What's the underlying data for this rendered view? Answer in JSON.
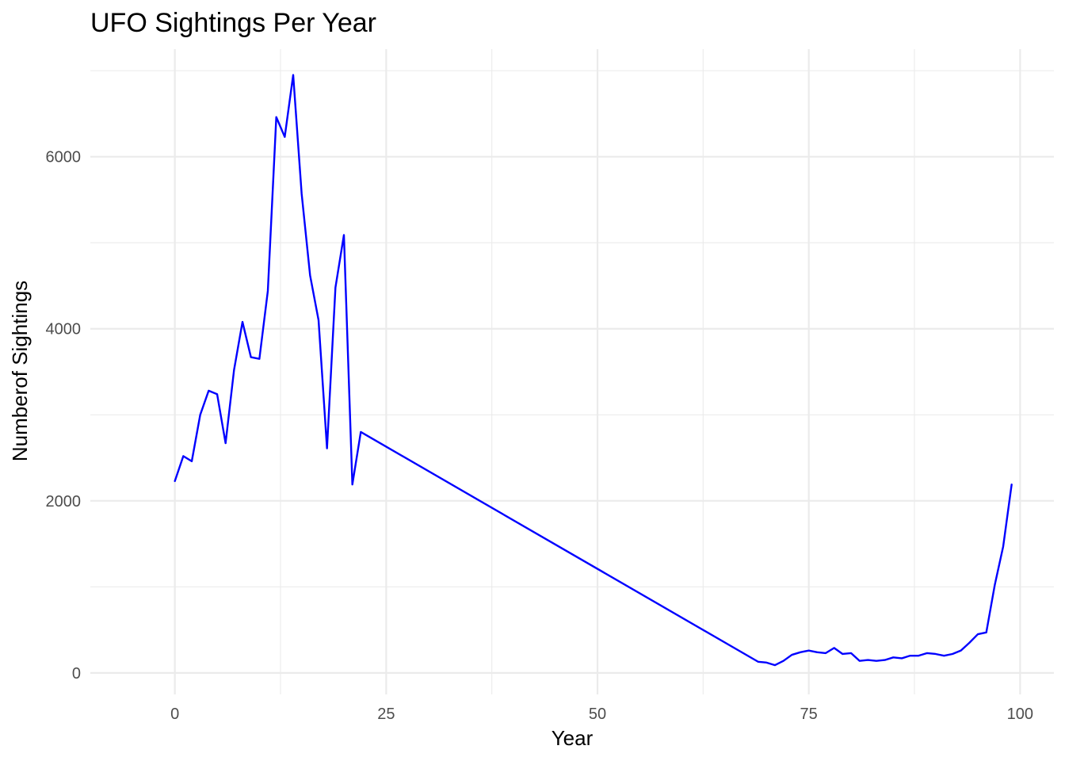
{
  "chart_data": {
    "type": "line",
    "title": "UFO Sightings Per Year",
    "xlabel": "Year",
    "ylabel": "Numberof Sightings",
    "xlim": [
      -10,
      104
    ],
    "ylim": [
      -250,
      7250
    ],
    "x_major_ticks": [
      0,
      25,
      50,
      75,
      100
    ],
    "x_minor_ticks": [
      12.5,
      37.5,
      62.5,
      87.5
    ],
    "y_major_ticks": [
      0,
      2000,
      4000,
      6000
    ],
    "y_minor_ticks": [
      1000,
      3000,
      5000,
      7000
    ],
    "grid": true,
    "legend": "none",
    "series_color": "#0000ff",
    "series": [
      {
        "x": [
          0,
          1,
          2,
          3,
          4,
          5,
          6,
          7,
          8,
          9,
          10,
          11,
          12,
          13,
          14,
          15,
          16,
          17,
          18,
          19,
          20,
          21,
          22,
          69,
          70,
          71,
          72,
          73,
          74,
          75,
          76,
          77,
          78,
          79,
          80,
          81,
          82,
          83,
          84,
          85,
          86,
          87,
          88,
          89,
          90,
          91,
          92,
          93,
          94,
          95,
          96,
          97,
          98,
          99
        ],
        "values": [
          2230,
          2520,
          2460,
          3000,
          3280,
          3240,
          2670,
          3520,
          4080,
          3670,
          3650,
          4440,
          6460,
          6230,
          6950,
          5570,
          4620,
          4100,
          2610,
          4480,
          5090,
          2190,
          2800,
          130,
          120,
          90,
          140,
          210,
          240,
          260,
          240,
          230,
          290,
          220,
          230,
          140,
          150,
          140,
          150,
          180,
          170,
          200,
          200,
          230,
          220,
          200,
          220,
          260,
          350,
          450,
          470,
          1020,
          1470,
          2190
        ]
      }
    ]
  }
}
